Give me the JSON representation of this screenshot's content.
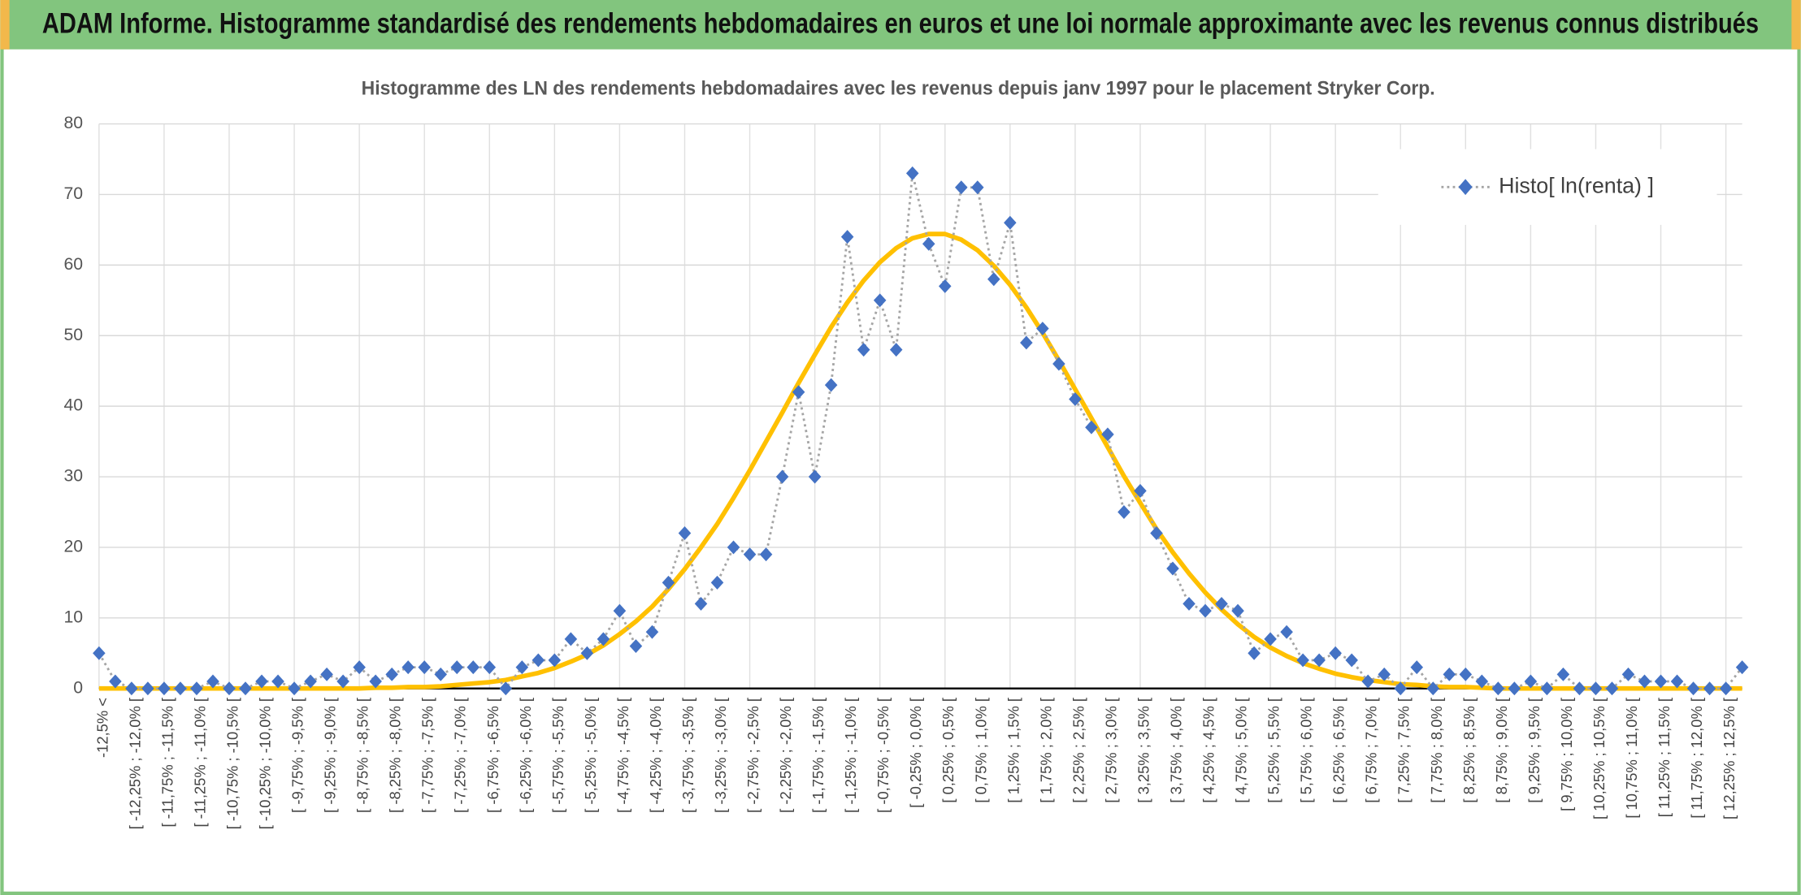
{
  "header": {
    "title": "ADAM Informe. Histogramme standardisé des rendements hebdomadaires en euros et une loi normale approximante avec les revenus connus distribués"
  },
  "chart_data": {
    "type": "line",
    "title": "Histogramme des LN des rendements hebdomadaires avec les revenus depuis janv 1997 pour le placement Stryker Corp.",
    "categories": [
      "-12,5% <",
      null,
      "[ -12,25% ; -12,0% [",
      null,
      "[ -11,75% ; -11,5% [",
      null,
      "[ -11,25% ; -11,0% [",
      null,
      "[ -10,75% ; -10,5% [",
      null,
      "[ -10,25% ; -10,0% [",
      null,
      "[ -9,75% ; -9,5% [",
      null,
      "[ -9,25% ; -9,0% [",
      null,
      "[ -8,75% ; -8,5% [",
      null,
      "[ -8,25% ; -8,0% [",
      null,
      "[ -7,75% ; -7,5% [",
      null,
      "[ -7,25% ; -7,0% [",
      null,
      "[ -6,75% ; -6,5% [",
      null,
      "[ -6,25% ; -6,0% [",
      null,
      "[ -5,75% ; -5,5% [",
      null,
      "[ -5,25% ; -5,0% [",
      null,
      "[ -4,75% ; -4,5% [",
      null,
      "[ -4,25% ; -4,0% [",
      null,
      "[ -3,75% ; -3,5% [",
      null,
      "[ -3,25% ; -3,0% [",
      null,
      "[ -2,75% ; -2,5% [",
      null,
      "[ -2,25% ; -2,0% [",
      null,
      "[ -1,75% ; -1,5% [",
      null,
      "[ -1,25% ; -1,0% [",
      null,
      "[ -0,75% ; -0,5% [",
      null,
      "[ -0,25% ; 0,0% [",
      null,
      "[ 0,25% ; 0,5% [",
      null,
      "[ 0,75% ; 1,0% [",
      null,
      "[ 1,25% ; 1,5% [",
      null,
      "[ 1,75% ; 2,0% [",
      null,
      "[ 2,25% ; 2,5% [",
      null,
      "[ 2,75% ; 3,0% [",
      null,
      "[ 3,25% ; 3,5% [",
      null,
      "[ 3,75% ; 4,0% [",
      null,
      "[ 4,25% ; 4,5% [",
      null,
      "[ 4,75% ; 5,0% [",
      null,
      "[ 5,25% ; 5,5% [",
      null,
      "[ 5,75% ; 6,0% [",
      null,
      "[ 6,25% ; 6,5% [",
      null,
      "[ 6,75% ; 7,0% [",
      null,
      "[ 7,25% ; 7,5% [",
      null,
      "[ 7,75% ; 8,0% [",
      null,
      "[ 8,25% ; 8,5% [",
      null,
      "[ 8,75% ; 9,0% [",
      null,
      "[ 9,25% ; 9,5% [",
      null,
      "[ 9,75% ; 10,0% [",
      null,
      "[ 10,25% ; 10,5% [",
      null,
      "[ 10,75% ; 11,0% [",
      null,
      "[ 11,25% ; 11,5% [",
      null,
      "[ 11,75% ; 12,0% [",
      null,
      "[ 12,25% ; 12,5% [",
      null
    ],
    "series": [
      {
        "name": "Histo[ ln(renta) ]",
        "color": "#4472c4",
        "line_color": "#a5a5a5",
        "marker": "diamond",
        "values": [
          5,
          1,
          0,
          0,
          0,
          0,
          0,
          1,
          0,
          0,
          1,
          1,
          0,
          1,
          2,
          1,
          3,
          1,
          2,
          3,
          3,
          2,
          3,
          3,
          3,
          0,
          3,
          4,
          4,
          7,
          5,
          7,
          11,
          6,
          8,
          15,
          22,
          12,
          15,
          20,
          19,
          19,
          30,
          42,
          30,
          43,
          64,
          48,
          55,
          48,
          73,
          63,
          57,
          71,
          71,
          58,
          66,
          49,
          51,
          46,
          41,
          37,
          36,
          25,
          28,
          22,
          17,
          12,
          11,
          12,
          11,
          5,
          7,
          8,
          4,
          4,
          5,
          4,
          1,
          2,
          0,
          3,
          0,
          2,
          2,
          1,
          0,
          0,
          1,
          0,
          2,
          0,
          0,
          0,
          2,
          1,
          1,
          1,
          0,
          0,
          0,
          3
        ]
      },
      {
        "color": "#ffc000",
        "values": [
          0,
          0,
          0,
          0,
          0,
          0,
          0,
          0,
          0,
          0,
          0,
          0,
          0,
          0,
          0,
          0,
          0,
          0.1,
          0.1,
          0.2,
          0.2,
          0.3,
          0.5,
          0.7,
          0.9,
          1.2,
          1.7,
          2.2,
          2.9,
          3.8,
          4.8,
          6.1,
          7.7,
          9.5,
          11.6,
          14.1,
          16.9,
          20.0,
          23.3,
          27.0,
          30.9,
          35.0,
          39.1,
          43.3,
          47.3,
          51.2,
          54.7,
          57.8,
          60.4,
          62.4,
          63.8,
          64.4,
          64.4,
          63.6,
          62.1,
          59.9,
          57.2,
          54.0,
          50.4,
          46.5,
          42.4,
          38.3,
          34.2,
          30.1,
          26.3,
          22.6,
          19.3,
          16.3,
          13.6,
          11.2,
          9.1,
          7.3,
          5.8,
          4.6,
          3.6,
          2.8,
          2.1,
          1.6,
          1.2,
          0.9,
          0.6,
          0.5,
          0.3,
          0.2,
          0.2,
          0.1,
          0,
          0,
          0,
          0,
          0,
          0,
          0,
          0,
          0,
          0,
          0,
          0,
          0,
          0,
          0,
          0
        ]
      }
    ],
    "ylim": [
      0,
      80
    ],
    "yticks": [
      0,
      10,
      20,
      30,
      40,
      50,
      60,
      70,
      80
    ],
    "grid": true,
    "legend": "top-right"
  }
}
